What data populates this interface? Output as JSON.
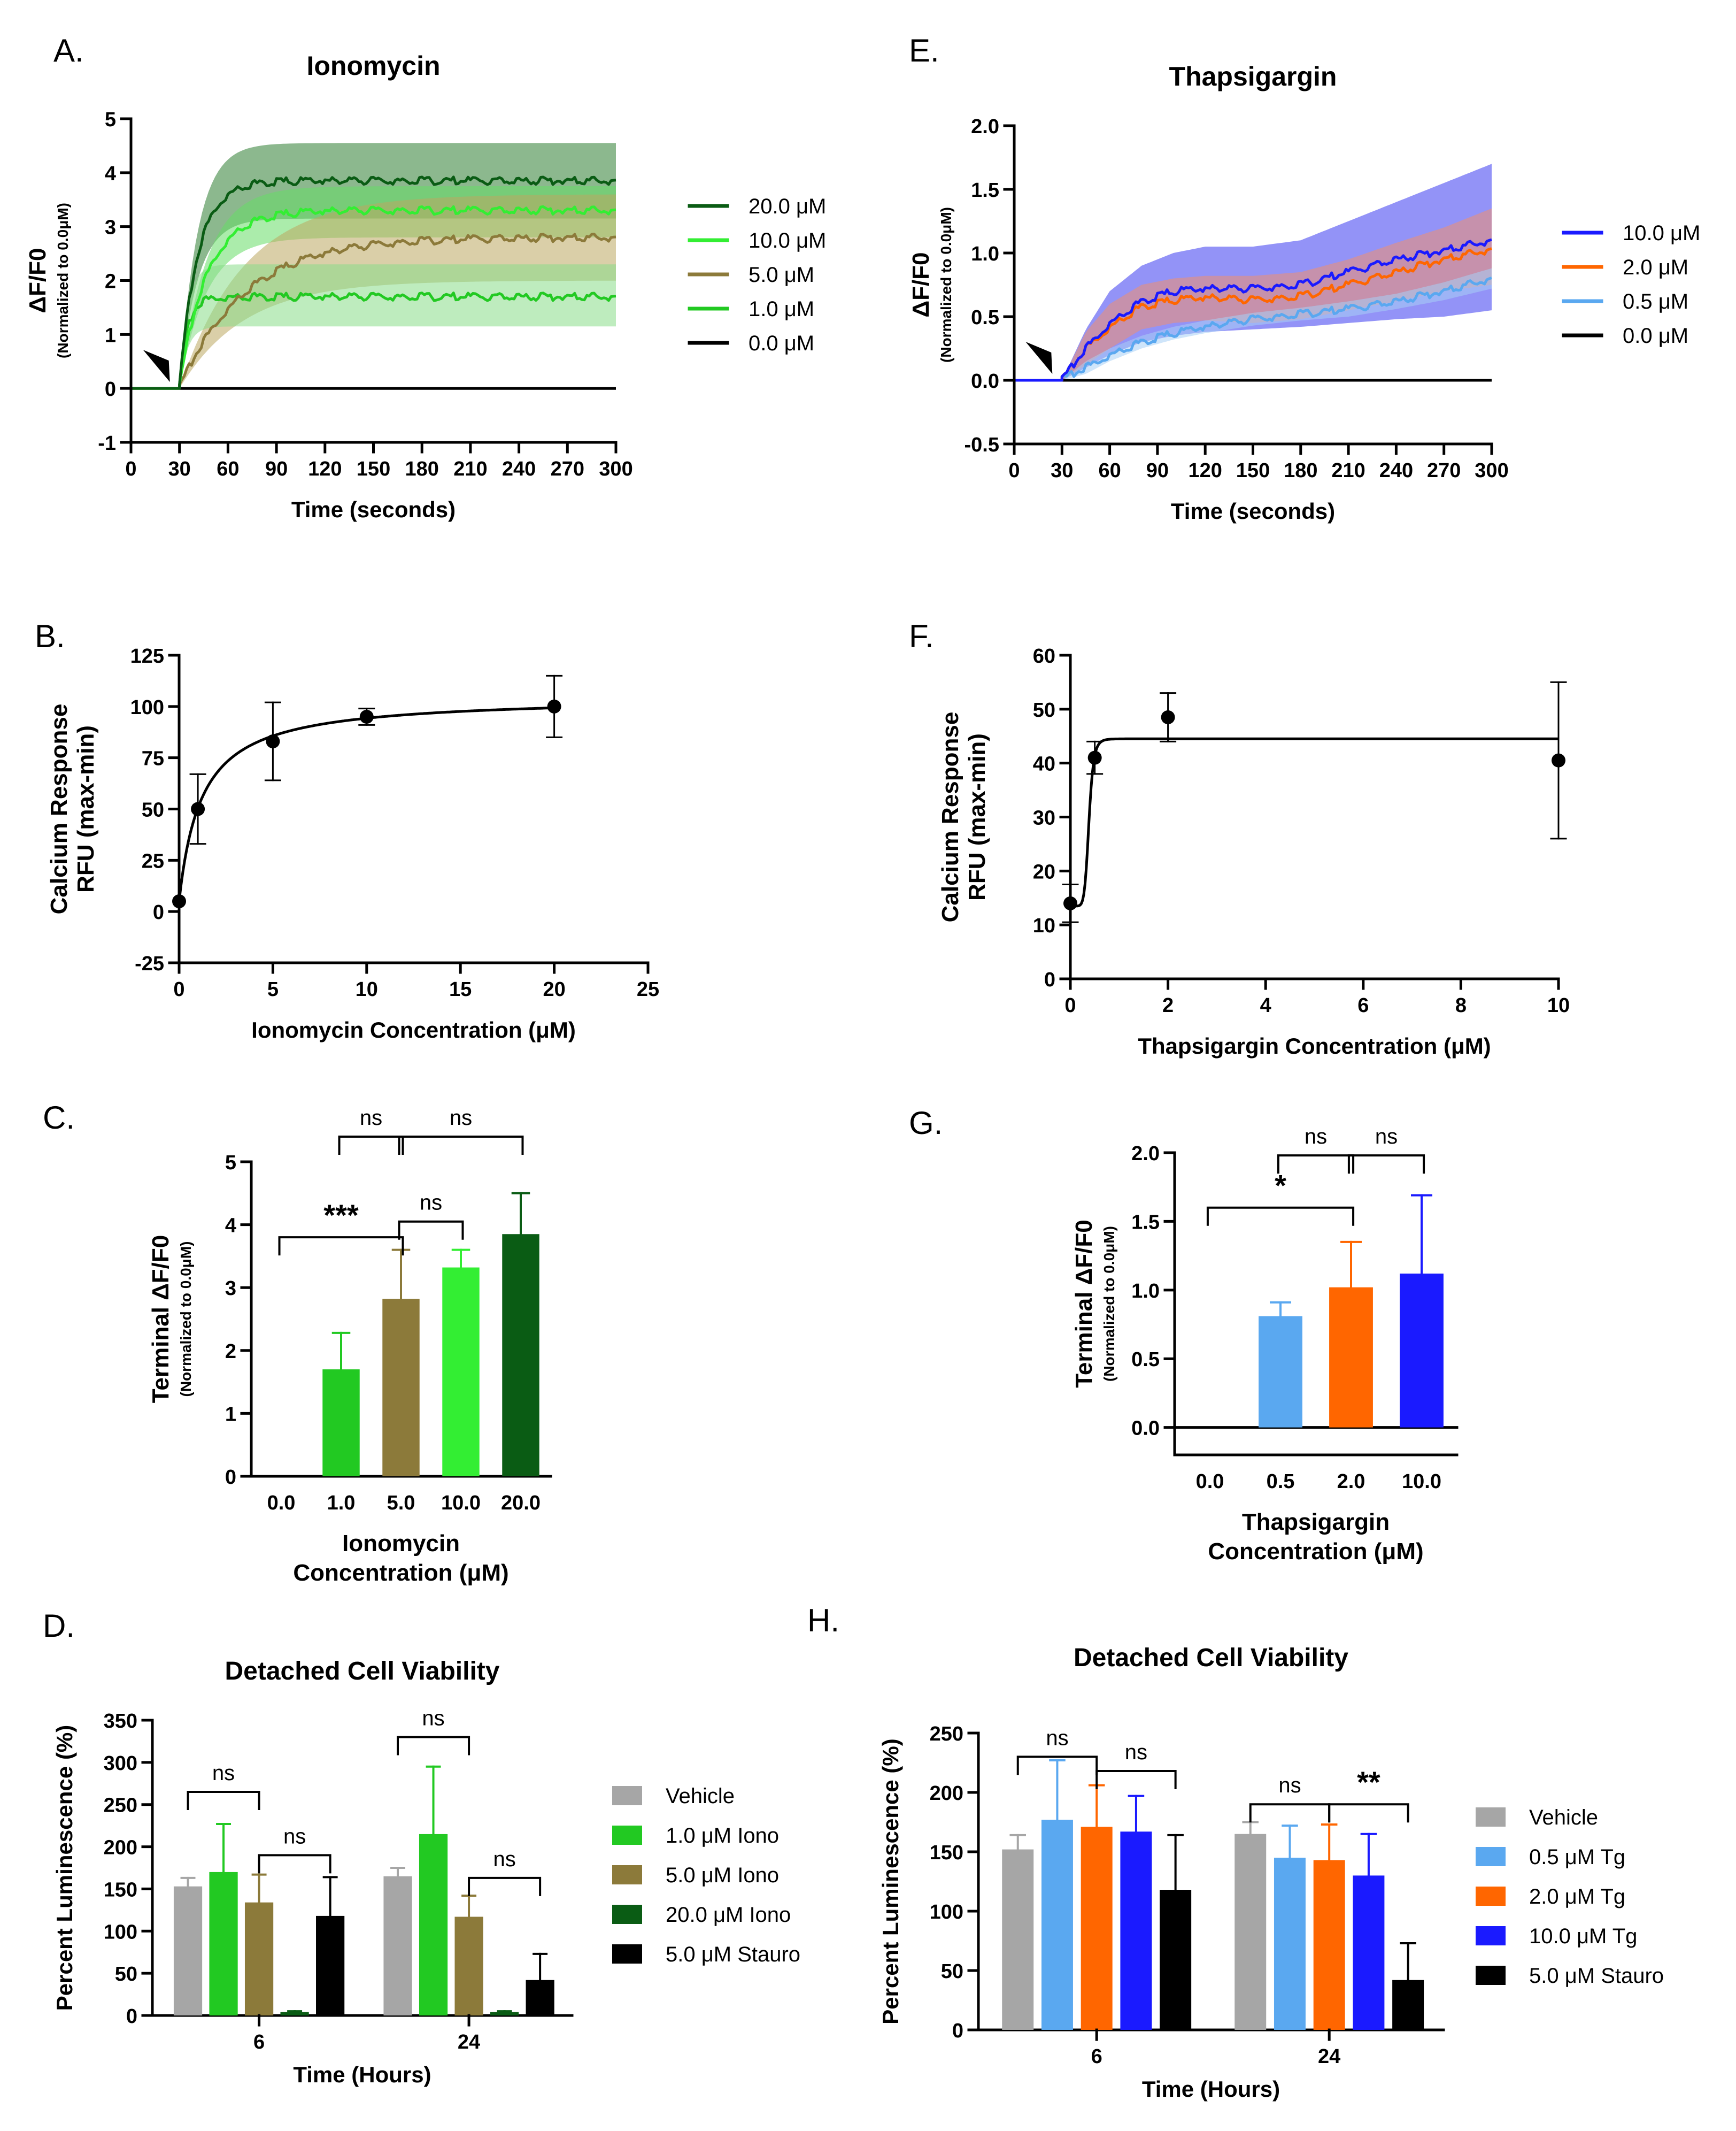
{
  "chart_data": [
    {
      "panel": "A.",
      "type": "line",
      "title": "Ionomycin",
      "xlabel": "Time (seconds)",
      "ylabel": "ΔF/F0",
      "ylabel_sub": "(Normalized to 0.0μM)",
      "xlim": [
        0,
        300
      ],
      "ylim": [
        -1,
        5
      ],
      "xticks": [
        0,
        30,
        60,
        90,
        120,
        150,
        180,
        210,
        240,
        270,
        300
      ],
      "yticks": [
        -1,
        0,
        1,
        2,
        3,
        4,
        5
      ],
      "stimulus_time": 30,
      "series": [
        {
          "name": "20.0 μM",
          "color": "#0a5c14",
          "band": "#2e7d32",
          "plateau": 3.85,
          "lower": 3.15,
          "upper": 4.55,
          "k": 0.09
        },
        {
          "name": "10.0 μM",
          "color": "#33ee33",
          "band": "#66dd66",
          "plateau": 3.3,
          "lower": 2.8,
          "upper": 3.75,
          "k": 0.06
        },
        {
          "name": "5.0 μM",
          "color": "#8c7a3a",
          "band": "#bba860",
          "plateau": 2.8,
          "lower": 2.0,
          "upper": 3.6,
          "k": 0.025
        },
        {
          "name": "1.0 μM",
          "color": "#22c922",
          "band": "#88dd88",
          "plateau": 1.7,
          "lower": 1.15,
          "upper": 2.3,
          "k": 0.2
        },
        {
          "name": "0.0 μM",
          "color": "#000000",
          "plateau": 0
        }
      ]
    },
    {
      "panel": "E.",
      "type": "line",
      "title": "Thapsigargin",
      "xlabel": "Time (seconds)",
      "ylabel": "ΔF/F0",
      "ylabel_sub": "(Normalized to 0.0μM)",
      "xlim": [
        0,
        300
      ],
      "ylim": [
        -0.5,
        2.0
      ],
      "xticks": [
        0,
        30,
        60,
        90,
        120,
        150,
        180,
        210,
        240,
        270,
        300
      ],
      "yticks": [
        -0.5,
        0.0,
        0.5,
        1.0,
        1.5,
        2.0
      ],
      "stimulus_time": 30,
      "series": [
        {
          "name": "10.0 μM",
          "color": "#1a1aff",
          "band": "#3a3af0",
          "x": [
            30,
            45,
            60,
            80,
            100,
            120,
            150,
            180,
            210,
            240,
            270,
            300
          ],
          "y": [
            0,
            0.25,
            0.45,
            0.62,
            0.7,
            0.72,
            0.72,
            0.75,
            0.85,
            0.95,
            1.02,
            1.1
          ],
          "lower": [
            0,
            0.1,
            0.2,
            0.3,
            0.35,
            0.38,
            0.4,
            0.42,
            0.45,
            0.48,
            0.5,
            0.55
          ],
          "upper": [
            0,
            0.4,
            0.7,
            0.9,
            1.0,
            1.05,
            1.05,
            1.1,
            1.25,
            1.4,
            1.55,
            1.7
          ]
        },
        {
          "name": "2.0 μM",
          "color": "#ff6600",
          "band": "#f09070",
          "x": [
            30,
            45,
            60,
            80,
            100,
            120,
            150,
            180,
            210,
            240,
            270,
            300
          ],
          "y": [
            0,
            0.25,
            0.42,
            0.58,
            0.63,
            0.65,
            0.63,
            0.66,
            0.75,
            0.85,
            0.95,
            1.03
          ],
          "lower": [
            0,
            0.12,
            0.25,
            0.4,
            0.45,
            0.47,
            0.45,
            0.48,
            0.55,
            0.62,
            0.7,
            0.75
          ],
          "upper": [
            0,
            0.38,
            0.6,
            0.75,
            0.8,
            0.82,
            0.82,
            0.85,
            0.95,
            1.08,
            1.2,
            1.35
          ]
        },
        {
          "name": "0.5 μM",
          "color": "#5aa8f0",
          "band": "#a8d0f5",
          "x": [
            30,
            45,
            60,
            80,
            100,
            120,
            150,
            180,
            210,
            240,
            270,
            300
          ],
          "y": [
            0,
            0.1,
            0.2,
            0.3,
            0.37,
            0.42,
            0.48,
            0.52,
            0.56,
            0.62,
            0.7,
            0.8
          ],
          "lower": [
            0,
            0.05,
            0.15,
            0.25,
            0.32,
            0.37,
            0.43,
            0.47,
            0.5,
            0.56,
            0.63,
            0.72
          ],
          "upper": [
            0,
            0.15,
            0.25,
            0.35,
            0.42,
            0.47,
            0.53,
            0.57,
            0.62,
            0.68,
            0.77,
            0.88
          ]
        },
        {
          "name": "0.0 μM",
          "color": "#000000",
          "x": [
            0,
            300
          ],
          "y": [
            0,
            0
          ]
        }
      ]
    },
    {
      "panel": "B.",
      "type": "scatter",
      "xlabel": "Ionomycin Concentration (μM)",
      "ylabel": [
        "Calcium Response",
        "RFU (max-min)"
      ],
      "xlim": [
        0,
        25
      ],
      "ylim": [
        -25,
        125
      ],
      "xticks": [
        0,
        5,
        10,
        15,
        20,
        25
      ],
      "yticks": [
        -25,
        0,
        25,
        50,
        75,
        100,
        125
      ],
      "x": [
        0,
        1,
        5,
        10,
        20
      ],
      "y": [
        5,
        50,
        83,
        95,
        100
      ],
      "err": [
        0,
        17,
        19,
        4,
        15
      ],
      "fit": {
        "model": "hyperbolic",
        "bottom": 5,
        "top": 105,
        "kd": 1.2
      }
    },
    {
      "panel": "F.",
      "type": "scatter",
      "xlabel": "Thapsigargin Concentration (μM)",
      "ylabel": [
        "Calcium Response",
        "RFU (max-min)"
      ],
      "xlim": [
        0,
        10
      ],
      "ylim": [
        0,
        60
      ],
      "xticks": [
        0,
        2,
        4,
        6,
        8,
        10
      ],
      "yticks": [
        0,
        10,
        20,
        30,
        40,
        50,
        60
      ],
      "x": [
        0,
        0.5,
        2,
        10
      ],
      "y": [
        14,
        41,
        48.5,
        40.5
      ],
      "err": [
        3.5,
        3,
        4.5,
        14.5
      ],
      "fit": {
        "model": "sigmoid",
        "bottom": 13.5,
        "top": 44.5,
        "ec50": 0.38,
        "hill": 8
      }
    },
    {
      "panel": "C.",
      "type": "bar",
      "ylabel": "Terminal ΔF/F0",
      "ylabel_sub": "(Normalized to 0.0μM)",
      "xlabel": [
        "Ionomycin",
        "Concentration (μM)"
      ],
      "categories": [
        "0.0",
        "1.0",
        "5.0",
        "10.0",
        "20.0"
      ],
      "values": [
        0,
        1.7,
        2.82,
        3.32,
        3.85
      ],
      "err": [
        0,
        0.58,
        0.78,
        0.28,
        0.65
      ],
      "colors": [
        "#ffffff",
        "#22c922",
        "#8c7a3a",
        "#33ee33",
        "#0a5c14"
      ],
      "ylim": [
        0,
        5
      ],
      "yticks": [
        0,
        1,
        2,
        3,
        4,
        5
      ],
      "significance": [
        {
          "from": 0,
          "to": 2,
          "label": "***",
          "level": 3.8
        },
        {
          "from": 2,
          "to": 3,
          "label": "ns",
          "level": 4.05
        },
        {
          "from": 1,
          "to": 2,
          "label": "ns",
          "level": 5.4
        },
        {
          "from": 2,
          "to": 4,
          "label": "ns",
          "level": 5.4
        }
      ]
    },
    {
      "panel": "G.",
      "type": "bar",
      "ylabel": "Terminal ΔF/F0",
      "ylabel_sub": "(Normalized to 0.0μM)",
      "xlabel": [
        "Thapsigargin",
        "Concentration (μM)"
      ],
      "categories": [
        "0.0",
        "0.5",
        "2.0",
        "10.0"
      ],
      "values": [
        0,
        0.81,
        1.02,
        1.12
      ],
      "err": [
        0,
        0.1,
        0.33,
        0.57
      ],
      "colors": [
        "#ffffff",
        "#5aa8f0",
        "#ff6600",
        "#1a1aff"
      ],
      "ylim": [
        -0.2,
        2.0
      ],
      "yticks": [
        0.0,
        0.5,
        1.0,
        1.5,
        2.0
      ],
      "significance": [
        {
          "from": 0,
          "to": 2,
          "label": "*",
          "level": 1.6
        },
        {
          "from": 1,
          "to": 2,
          "label": "ns",
          "level": 1.98
        },
        {
          "from": 2,
          "to": 3,
          "label": "ns",
          "level": 1.98
        }
      ]
    },
    {
      "panel": "D.",
      "type": "bar",
      "title": "Detached Cell Viability",
      "ylabel": "Percent Luminescence (%)",
      "xlabel": "Time (Hours)",
      "categories": [
        "6",
        "24"
      ],
      "series": [
        {
          "name": "Vehicle",
          "color": "#a6a6a6",
          "values": [
            153,
            165
          ],
          "err": [
            10,
            10
          ]
        },
        {
          "name": "1.0 μM Iono",
          "color": "#22c922",
          "values": [
            170,
            215
          ],
          "err": [
            57,
            80
          ]
        },
        {
          "name": "5.0 μM Iono",
          "color": "#8c7a3a",
          "values": [
            134,
            117
          ],
          "err": [
            33,
            25
          ]
        },
        {
          "name": "20.0 μM Iono",
          "color": "#0a5c14",
          "values": [
            4,
            4
          ],
          "err": [
            1,
            1
          ]
        },
        {
          "name": "5.0 μM Stauro",
          "color": "#000000",
          "values": [
            118,
            42
          ],
          "err": [
            46,
            31
          ]
        }
      ],
      "ylim": [
        0,
        350
      ],
      "yticks": [
        0,
        50,
        100,
        150,
        200,
        250,
        300,
        350
      ],
      "significance": [
        {
          "group": 0,
          "from": 0,
          "to": 2,
          "label": "ns",
          "level": 265
        },
        {
          "group": 0,
          "from": 2,
          "to": 4,
          "label": "ns",
          "level": 190
        },
        {
          "group": 1,
          "from": 0,
          "to": 2,
          "label": "ns",
          "level": 330
        },
        {
          "group": 1,
          "from": 2,
          "to": 4,
          "label": "ns",
          "level": 163
        }
      ]
    },
    {
      "panel": "H.",
      "type": "bar",
      "title": "Detached Cell Viability",
      "ylabel": "Percent Luminescence (%)",
      "xlabel": "Time (Hours)",
      "categories": [
        "6",
        "24"
      ],
      "series": [
        {
          "name": "Vehicle",
          "color": "#a6a6a6",
          "values": [
            152,
            165
          ],
          "err": [
            12,
            10
          ]
        },
        {
          "name": "0.5 μM Tg",
          "color": "#5aa8f0",
          "values": [
            177,
            145
          ],
          "err": [
            50,
            27
          ]
        },
        {
          "name": "2.0 μM Tg",
          "color": "#ff6600",
          "values": [
            171,
            143
          ],
          "err": [
            35,
            30
          ]
        },
        {
          "name": "10.0 μM Tg",
          "color": "#1a1aff",
          "values": [
            167,
            130
          ],
          "err": [
            30,
            35
          ]
        },
        {
          "name": "5.0 μM Stauro",
          "color": "#000000",
          "values": [
            118,
            42
          ],
          "err": [
            46,
            31
          ]
        }
      ],
      "ylim": [
        0,
        250
      ],
      "yticks": [
        0,
        50,
        100,
        150,
        200,
        250
      ],
      "significance": [
        {
          "group": 0,
          "from": 0,
          "to": 2,
          "label": "ns",
          "level": 230
        },
        {
          "group": 0,
          "from": 2,
          "to": 4,
          "label": "ns",
          "level": 218
        },
        {
          "group": 1,
          "from": 0,
          "to": 2,
          "label": "ns",
          "level": 190
        },
        {
          "group": 1,
          "from": 2,
          "to": 4,
          "label": "**",
          "level": 190
        }
      ]
    }
  ]
}
